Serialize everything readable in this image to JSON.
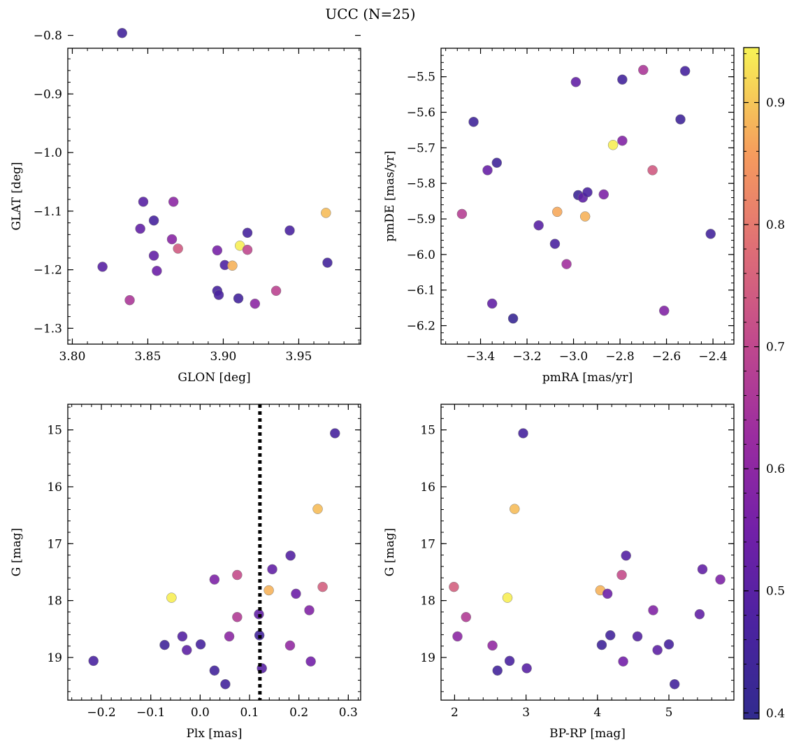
{
  "figure": {
    "title": "UCC (N=25)"
  },
  "colorbar": {
    "range": [
      0.395,
      0.945
    ],
    "ticks": [
      0.4,
      0.5,
      0.6,
      0.7,
      0.8,
      0.9
    ],
    "tick_labels": [
      "0.4",
      "0.5",
      "0.6",
      "0.7",
      "0.8",
      "0.9"
    ]
  },
  "chart_data": [
    {
      "type": "scatter",
      "title": "",
      "xlabel": "GLON [deg]",
      "ylabel": "GLAT [deg]",
      "xlim": [
        3.797,
        3.991
      ],
      "ylim": [
        -1.327,
        -0.822
      ],
      "invert_y": false,
      "xticks": [
        3.8,
        3.85,
        3.9,
        3.95
      ],
      "xtick_labels": [
        "3.80",
        "3.85",
        "3.90",
        "3.95"
      ],
      "yticks": [
        -1.3,
        -1.2,
        -1.1,
        -1.0,
        -0.9,
        -0.8
      ],
      "ytick_labels": [
        "−1.3",
        "−1.2",
        "−1.1",
        "−1.0",
        "−0.9",
        "−0.8"
      ],
      "points": [
        {
          "x": 3.833,
          "y": -0.796,
          "c": 0.45
        },
        {
          "x": 3.82,
          "y": -1.195,
          "c": 0.5
        },
        {
          "x": 3.838,
          "y": -1.252,
          "c": 0.66
        },
        {
          "x": 3.845,
          "y": -1.13,
          "c": 0.52
        },
        {
          "x": 3.847,
          "y": -1.084,
          "c": 0.5
        },
        {
          "x": 3.854,
          "y": -1.116,
          "c": 0.46
        },
        {
          "x": 3.854,
          "y": -1.176,
          "c": 0.52
        },
        {
          "x": 3.856,
          "y": -1.202,
          "c": 0.54
        },
        {
          "x": 3.866,
          "y": -1.148,
          "c": 0.59
        },
        {
          "x": 3.867,
          "y": -1.084,
          "c": 0.6
        },
        {
          "x": 3.87,
          "y": -1.164,
          "c": 0.74
        },
        {
          "x": 3.896,
          "y": -1.167,
          "c": 0.56
        },
        {
          "x": 3.896,
          "y": -1.236,
          "c": 0.46
        },
        {
          "x": 3.897,
          "y": -1.243,
          "c": 0.47
        },
        {
          "x": 3.901,
          "y": -1.192,
          "c": 0.48
        },
        {
          "x": 3.906,
          "y": -1.193,
          "c": 0.88
        },
        {
          "x": 3.91,
          "y": -1.249,
          "c": 0.45
        },
        {
          "x": 3.911,
          "y": -1.159,
          "c": 0.94
        },
        {
          "x": 3.916,
          "y": -1.137,
          "c": 0.46
        },
        {
          "x": 3.916,
          "y": -1.166,
          "c": 0.7
        },
        {
          "x": 3.921,
          "y": -1.258,
          "c": 0.6
        },
        {
          "x": 3.935,
          "y": -1.236,
          "c": 0.69
        },
        {
          "x": 3.944,
          "y": -1.133,
          "c": 0.47
        },
        {
          "x": 3.968,
          "y": -1.103,
          "c": 0.89
        },
        {
          "x": 3.969,
          "y": -1.188,
          "c": 0.45
        }
      ]
    },
    {
      "type": "scatter",
      "title": "",
      "xlabel": "pmRA [mas/yr]",
      "ylabel": "pmDE [mas/yr]",
      "xlim": [
        -3.57,
        -2.31
      ],
      "ylim": [
        -6.252,
        -5.42
      ],
      "invert_y": false,
      "xticks": [
        -3.4,
        -3.2,
        -3.0,
        -2.8,
        -2.6,
        -2.4
      ],
      "xtick_labels": [
        "−3.4",
        "−3.2",
        "−3.0",
        "−2.8",
        "−2.6",
        "−2.4"
      ],
      "yticks": [
        -6.2,
        -6.1,
        -6.0,
        -5.9,
        -5.8,
        -5.7,
        -5.6,
        -5.5
      ],
      "ytick_labels": [
        "−6.2",
        "−6.1",
        "−6.0",
        "−5.9",
        "−5.8",
        "−5.7",
        "−5.6",
        "−5.5"
      ],
      "points": [
        {
          "x": -3.48,
          "y": -5.886,
          "c": 0.68
        },
        {
          "x": -3.43,
          "y": -5.627,
          "c": 0.44
        },
        {
          "x": -3.37,
          "y": -5.763,
          "c": 0.53
        },
        {
          "x": -3.35,
          "y": -6.138,
          "c": 0.52
        },
        {
          "x": -3.33,
          "y": -5.742,
          "c": 0.44
        },
        {
          "x": -3.26,
          "y": -6.18,
          "c": 0.42
        },
        {
          "x": -3.15,
          "y": -5.918,
          "c": 0.5
        },
        {
          "x": -3.08,
          "y": -5.97,
          "c": 0.47
        },
        {
          "x": -3.07,
          "y": -5.88,
          "c": 0.87
        },
        {
          "x": -3.03,
          "y": -6.027,
          "c": 0.64
        },
        {
          "x": -2.99,
          "y": -5.515,
          "c": 0.52
        },
        {
          "x": -2.98,
          "y": -5.833,
          "c": 0.43
        },
        {
          "x": -2.96,
          "y": -5.84,
          "c": 0.51
        },
        {
          "x": -2.95,
          "y": -5.893,
          "c": 0.88
        },
        {
          "x": -2.94,
          "y": -5.825,
          "c": 0.47
        },
        {
          "x": -2.87,
          "y": -5.831,
          "c": 0.57
        },
        {
          "x": -2.83,
          "y": -5.692,
          "c": 0.94
        },
        {
          "x": -2.79,
          "y": -5.508,
          "c": 0.45
        },
        {
          "x": -2.79,
          "y": -5.68,
          "c": 0.58
        },
        {
          "x": -2.7,
          "y": -5.481,
          "c": 0.66
        },
        {
          "x": -2.66,
          "y": -5.763,
          "c": 0.74
        },
        {
          "x": -2.61,
          "y": -6.158,
          "c": 0.58
        },
        {
          "x": -2.54,
          "y": -5.62,
          "c": 0.44
        },
        {
          "x": -2.52,
          "y": -5.484,
          "c": 0.46
        },
        {
          "x": -2.41,
          "y": -5.942,
          "c": 0.45
        }
      ]
    },
    {
      "type": "scatter",
      "title": "",
      "xlabel": "Plx [mas]",
      "ylabel": "G [mag]",
      "xlim": [
        -0.268,
        0.325
      ],
      "ylim": [
        14.55,
        19.75
      ],
      "invert_y": true,
      "vline": {
        "x": 0.121,
        "style": "dotted"
      },
      "xticks": [
        -0.2,
        -0.1,
        0.0,
        0.1,
        0.2,
        0.3
      ],
      "xtick_labels": [
        "−0.2",
        "−0.1",
        "0.0",
        "0.1",
        "0.2",
        "0.3"
      ],
      "yticks": [
        15,
        16,
        17,
        18,
        19
      ],
      "ytick_labels": [
        "15",
        "16",
        "17",
        "18",
        "19"
      ],
      "points": [
        {
          "x": 0.273,
          "y": 15.06,
          "c": 0.46
        },
        {
          "x": 0.238,
          "y": 16.39,
          "c": 0.89
        },
        {
          "x": 0.183,
          "y": 17.21,
          "c": 0.49
        },
        {
          "x": 0.146,
          "y": 17.45,
          "c": 0.52
        },
        {
          "x": 0.075,
          "y": 17.55,
          "c": 0.71
        },
        {
          "x": 0.029,
          "y": 17.63,
          "c": 0.57
        },
        {
          "x": 0.248,
          "y": 17.76,
          "c": 0.75
        },
        {
          "x": 0.139,
          "y": 17.82,
          "c": 0.88
        },
        {
          "x": 0.194,
          "y": 17.88,
          "c": 0.54
        },
        {
          "x": -0.058,
          "y": 17.95,
          "c": 0.94
        },
        {
          "x": 0.221,
          "y": 18.17,
          "c": 0.58
        },
        {
          "x": 0.119,
          "y": 18.24,
          "c": 0.52
        },
        {
          "x": 0.075,
          "y": 18.29,
          "c": 0.67
        },
        {
          "x": 0.12,
          "y": 18.61,
          "c": 0.45
        },
        {
          "x": -0.036,
          "y": 18.63,
          "c": 0.49
        },
        {
          "x": 0.059,
          "y": 18.63,
          "c": 0.6
        },
        {
          "x": -0.072,
          "y": 18.78,
          "c": 0.44
        },
        {
          "x": 0.001,
          "y": 18.77,
          "c": 0.46
        },
        {
          "x": 0.182,
          "y": 18.79,
          "c": 0.61
        },
        {
          "x": -0.027,
          "y": 18.87,
          "c": 0.51
        },
        {
          "x": -0.216,
          "y": 19.06,
          "c": 0.47
        },
        {
          "x": 0.224,
          "y": 19.07,
          "c": 0.55
        },
        {
          "x": 0.029,
          "y": 19.23,
          "c": 0.45
        },
        {
          "x": 0.125,
          "y": 19.19,
          "c": 0.5
        },
        {
          "x": 0.051,
          "y": 19.47,
          "c": 0.45
        }
      ]
    },
    {
      "type": "scatter",
      "title": "",
      "xlabel": "BP-RP [mag]",
      "ylabel": "G [mag]",
      "xlim": [
        1.81,
        5.91
      ],
      "ylim": [
        14.55,
        19.75
      ],
      "invert_y": true,
      "xticks": [
        2,
        3,
        4,
        5
      ],
      "xtick_labels": [
        "2",
        "3",
        "4",
        "5"
      ],
      "yticks": [
        15,
        16,
        17,
        18,
        19
      ],
      "ytick_labels": [
        "15",
        "16",
        "17",
        "18",
        "19"
      ],
      "points": [
        {
          "x": 2.96,
          "y": 15.06,
          "c": 0.46
        },
        {
          "x": 2.84,
          "y": 16.39,
          "c": 0.89
        },
        {
          "x": 4.4,
          "y": 17.21,
          "c": 0.49
        },
        {
          "x": 5.47,
          "y": 17.45,
          "c": 0.52
        },
        {
          "x": 4.34,
          "y": 17.55,
          "c": 0.71
        },
        {
          "x": 5.72,
          "y": 17.63,
          "c": 0.57
        },
        {
          "x": 1.99,
          "y": 17.76,
          "c": 0.75
        },
        {
          "x": 4.04,
          "y": 17.82,
          "c": 0.88
        },
        {
          "x": 4.14,
          "y": 17.88,
          "c": 0.54
        },
        {
          "x": 2.74,
          "y": 17.95,
          "c": 0.94
        },
        {
          "x": 4.78,
          "y": 18.17,
          "c": 0.58
        },
        {
          "x": 5.43,
          "y": 18.24,
          "c": 0.52
        },
        {
          "x": 2.16,
          "y": 18.29,
          "c": 0.67
        },
        {
          "x": 4.18,
          "y": 18.61,
          "c": 0.45
        },
        {
          "x": 4.56,
          "y": 18.63,
          "c": 0.49
        },
        {
          "x": 2.04,
          "y": 18.63,
          "c": 0.6
        },
        {
          "x": 4.06,
          "y": 18.78,
          "c": 0.44
        },
        {
          "x": 5.0,
          "y": 18.77,
          "c": 0.46
        },
        {
          "x": 2.53,
          "y": 18.79,
          "c": 0.61
        },
        {
          "x": 4.84,
          "y": 18.87,
          "c": 0.51
        },
        {
          "x": 2.77,
          "y": 19.06,
          "c": 0.47
        },
        {
          "x": 4.36,
          "y": 19.07,
          "c": 0.55
        },
        {
          "x": 2.6,
          "y": 19.23,
          "c": 0.45
        },
        {
          "x": 3.01,
          "y": 19.19,
          "c": 0.5
        },
        {
          "x": 5.08,
          "y": 19.47,
          "c": 0.45
        }
      ]
    }
  ]
}
